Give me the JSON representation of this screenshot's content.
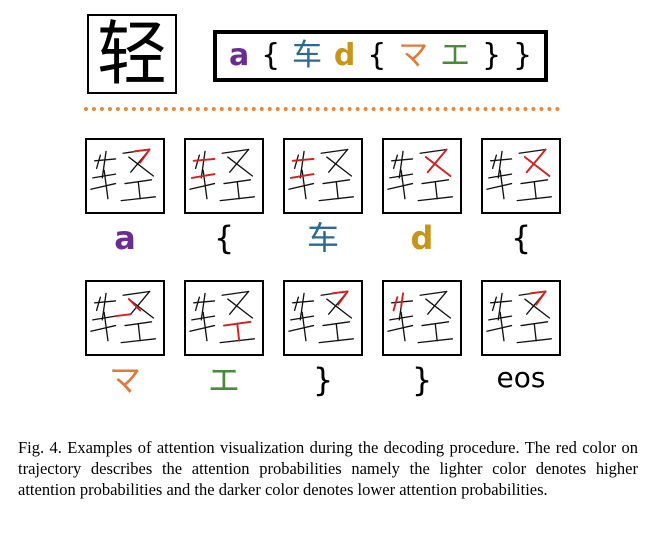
{
  "character": "轻",
  "sequence": [
    {
      "text": "a",
      "color": "#6a2c91",
      "style": "latin"
    },
    {
      "text": "{",
      "color": "#000000",
      "style": "brace"
    },
    {
      "text": "车",
      "color": "#2c6a8f",
      "style": "cjk"
    },
    {
      "text": "d",
      "color": "#c8951b",
      "style": "latin"
    },
    {
      "text": "{",
      "color": "#000000",
      "style": "brace"
    },
    {
      "text": "マ",
      "color": "#e07a3a",
      "style": "cjk"
    },
    {
      "text": "エ",
      "color": "#4a8a3a",
      "style": "cjk"
    },
    {
      "text": "}",
      "color": "#000000",
      "style": "brace"
    },
    {
      "text": "}",
      "color": "#000000",
      "style": "brace"
    }
  ],
  "steps": [
    {
      "label": "a",
      "color": "#6a2c91",
      "style": "latin",
      "focus": "right-top"
    },
    {
      "label": "{",
      "color": "#000000",
      "style": "brace",
      "focus": "left-mid"
    },
    {
      "label": "车",
      "color": "#2c6a8f",
      "style": "cjk",
      "focus": "left-mid"
    },
    {
      "label": "d",
      "color": "#c8951b",
      "style": "latin",
      "focus": "right-mid"
    },
    {
      "label": "{",
      "color": "#000000",
      "style": "brace",
      "focus": "right-mid"
    },
    {
      "label": "マ",
      "color": "#e07a3a",
      "style": "cjk",
      "focus": "center"
    },
    {
      "label": "エ",
      "color": "#4a8a3a",
      "style": "cjk",
      "focus": "right-vert"
    },
    {
      "label": "}",
      "color": "#000000",
      "style": "brace",
      "focus": "right-top"
    },
    {
      "label": "}",
      "color": "#000000",
      "style": "brace",
      "focus": "left-top"
    },
    {
      "label": "eos",
      "color": "#000000",
      "style": "eos",
      "focus": "right-top"
    }
  ],
  "caption": "Fig. 4.   Examples of attention visualization during the decoding procedure. The red color on trajectory describes the attention probabilities namely the lighter color denotes higher attention probabilities and the darker color denotes lower attention probabilities.",
  "colors": {
    "divider": "#e8893a",
    "attention": "#d62020",
    "stroke": "#111111"
  }
}
